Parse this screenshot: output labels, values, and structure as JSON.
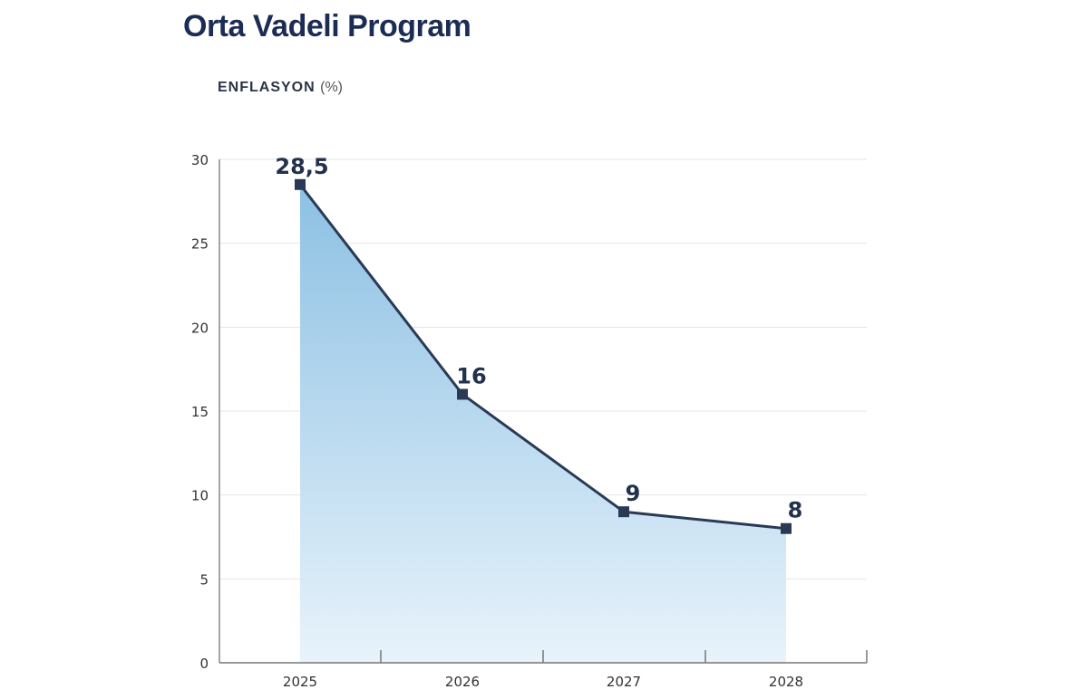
{
  "chart_data": {
    "type": "area",
    "title": "Orta Vadeli Program",
    "subtitle": "ENFLASYON",
    "unit": "(%)",
    "categories": [
      "2025",
      "2026",
      "2027",
      "2028"
    ],
    "values": [
      28.5,
      16,
      9,
      8
    ],
    "data_labels": [
      "28,5",
      "16",
      "9",
      "8"
    ],
    "ylim": [
      0,
      30
    ],
    "yticks": [
      0,
      5,
      10,
      15,
      20,
      25,
      30
    ],
    "grid": true,
    "line_color": "#2a3a55",
    "fill_color_top": "#8cc0e3",
    "fill_color_bottom": "#e8f3fb",
    "marker": "square"
  }
}
